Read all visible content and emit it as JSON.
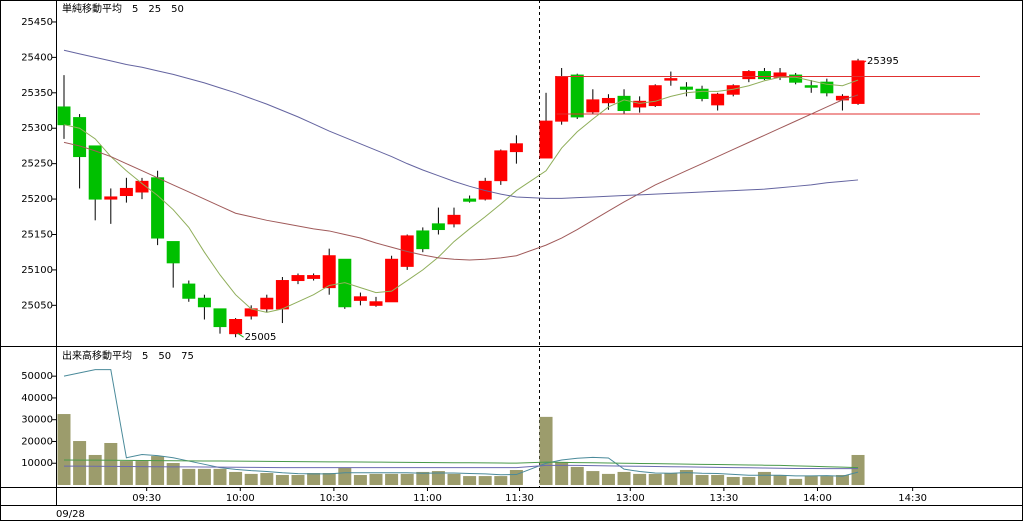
{
  "chart_data": [
    {
      "type": "candlestick",
      "title": "単純移動平均",
      "categories": [
        null,
        null,
        null,
        null,
        null,
        null,
        null,
        null,
        null,
        null,
        null,
        null,
        null,
        null,
        null,
        null,
        null,
        null,
        null,
        null,
        null,
        null,
        null,
        null,
        null,
        null,
        null,
        null,
        null,
        null,
        null,
        null,
        null,
        null,
        null,
        null,
        null,
        null,
        null,
        null,
        null,
        null,
        null,
        null,
        null,
        null,
        null,
        null,
        null,
        null,
        null
      ],
      "open": [
        25330,
        25315,
        25275,
        25200,
        25205,
        25210,
        25230,
        25140,
        25080,
        25060,
        25045,
        25010,
        25035,
        25045,
        25045,
        25085,
        25088,
        25075,
        25115,
        25057,
        25050,
        25055,
        25105,
        25155,
        25165,
        25165,
        25200,
        25200,
        25226,
        25267,
        25258,
        25310,
        25375,
        25323,
        25336,
        25345,
        25330,
        25332,
        25368,
        25358,
        25355,
        25333,
        25348,
        25370,
        25380,
        25372,
        25375,
        25360,
        25365,
        25340,
        25335
      ],
      "high": [
        25375,
        25320,
        25275,
        25215,
        25230,
        25230,
        25240,
        25140,
        25085,
        25065,
        25045,
        25032,
        25050,
        25065,
        25090,
        25095,
        25095,
        25130,
        25115,
        25068,
        25062,
        25120,
        25150,
        25160,
        25188,
        25188,
        25205,
        25230,
        25270,
        25290,
        25350,
        25385,
        25377,
        25355,
        25348,
        25355,
        25345,
        25362,
        25380,
        25365,
        25360,
        25350,
        25362,
        25382,
        25385,
        25385,
        25378,
        25368,
        25370,
        25348,
        25398
      ],
      "low": [
        25285,
        25215,
        25170,
        25165,
        25195,
        25200,
        25135,
        25075,
        25055,
        25030,
        25010,
        25005,
        25030,
        25040,
        25025,
        25080,
        25085,
        25065,
        25045,
        25050,
        25048,
        25055,
        25100,
        25125,
        25150,
        25160,
        25195,
        25198,
        25220,
        25250,
        25258,
        25305,
        25313,
        25320,
        25326,
        25320,
        25322,
        25330,
        25360,
        25345,
        25338,
        25325,
        25345,
        25365,
        25368,
        25368,
        25362,
        25350,
        25345,
        25325,
        25333
      ],
      "close": [
        25305,
        25260,
        25200,
        25203,
        25215,
        25225,
        25145,
        25110,
        25060,
        25048,
        25020,
        25030,
        25045,
        25060,
        25085,
        25092,
        25092,
        25120,
        25048,
        25062,
        25055,
        25115,
        25148,
        25130,
        25157,
        25177,
        25197,
        25225,
        25268,
        25278,
        25310,
        25373,
        25316,
        25340,
        25342,
        25325,
        25338,
        25360,
        25370,
        25355,
        25342,
        25348,
        25360,
        25380,
        25370,
        25378,
        25365,
        25358,
        25350,
        25345,
        25395
      ],
      "up_color": "#ff0000",
      "down_color": "#00c000",
      "series": [
        {
          "name": "5",
          "color": "#8fae5a",
          "values": [
            25305,
            25300,
            25285,
            25260,
            25240,
            25222,
            25205,
            25185,
            25160,
            25125,
            25093,
            25065,
            25045,
            25040,
            25045,
            25055,
            25065,
            25078,
            25082,
            25075,
            25068,
            25070,
            25085,
            25100,
            25118,
            25140,
            25158,
            25175,
            25193,
            25212,
            25240,
            25272,
            25295,
            25313,
            25330,
            25340,
            25335,
            25338,
            25345,
            25350,
            25352,
            25352,
            25355,
            25360,
            25367,
            25372,
            25372,
            25367,
            25362,
            25360,
            25368
          ]
        },
        {
          "name": "25",
          "color": "#a05a5a",
          "values": [
            25280,
            25275,
            25268,
            25260,
            25250,
            25240,
            25230,
            25220,
            25210,
            25200,
            25190,
            25180,
            25175,
            25170,
            25166,
            25162,
            25158,
            25155,
            25150,
            25145,
            25138,
            25132,
            25126,
            25121,
            25117,
            25115,
            25114,
            25115,
            25117,
            25120,
            25135,
            25145,
            25157,
            25170,
            25183,
            25196,
            25208,
            25220,
            25230,
            25240,
            25250,
            25260,
            25270,
            25280,
            25290,
            25300,
            25310,
            25320,
            25330,
            25340,
            25347
          ]
        },
        {
          "name": "50",
          "color": "#6464a0",
          "values": [
            25410,
            25405,
            25400,
            25395,
            25390,
            25386,
            25381,
            25376,
            25370,
            25364,
            25357,
            25350,
            25342,
            25334,
            25325,
            25316,
            25306,
            25296,
            25287,
            25278,
            25269,
            25260,
            25250,
            25241,
            25233,
            25225,
            25218,
            25212,
            25207,
            25203,
            25201,
            25201,
            25202,
            25203,
            25204,
            25205,
            25206,
            25207,
            25208,
            25209,
            25210,
            25211,
            25212,
            25213,
            25214,
            25216,
            25218,
            25220,
            25223,
            25225,
            25227
          ]
        }
      ],
      "hlines": [
        25373,
        25320
      ],
      "hline_color": "#e03030",
      "annotations": [
        {
          "value": 25395,
          "index": 50,
          "color": "#ff0000"
        },
        {
          "value": 25005,
          "index": 11,
          "color": "#22aa22"
        }
      ],
      "ylim": [
        24994,
        25481
      ],
      "yticks": [
        25050,
        25100,
        25150,
        25200,
        25250,
        25300,
        25350,
        25400,
        25450
      ]
    },
    {
      "type": "bar",
      "title": "出来高移動平均",
      "color": "#9c9c6c",
      "values": [
        32600,
        20200,
        13800,
        19300,
        11000,
        11000,
        13300,
        10100,
        7400,
        7400,
        7400,
        6000,
        5100,
        5500,
        4600,
        4600,
        5500,
        5500,
        7800,
        4600,
        5100,
        5100,
        5100,
        6000,
        6400,
        5100,
        4100,
        4100,
        4100,
        6900,
        31300,
        10600,
        8300,
        6400,
        5100,
        6000,
        5100,
        5100,
        5500,
        6900,
        4600,
        4600,
        3700,
        3700,
        6000,
        4600,
        2800,
        4100,
        4100,
        4600,
        13800
      ],
      "series": [
        {
          "name": "5",
          "color": "#4a8a9a",
          "values": [
            50000,
            51500,
            53000,
            53000,
            12500,
            14000,
            13500,
            12500,
            11000,
            9500,
            8000,
            7200,
            6600,
            6200,
            5600,
            5200,
            5100,
            5100,
            5600,
            5600,
            5600,
            5600,
            5600,
            5400,
            5500,
            5500,
            5300,
            5100,
            4700,
            4800,
            10000,
            11500,
            12300,
            12700,
            12400,
            7300,
            6200,
            5500,
            5400,
            5700,
            5400,
            5300,
            4900,
            4500,
            4500,
            4500,
            4200,
            4200,
            4300,
            4000,
            5900
          ]
        },
        {
          "name": "50",
          "color": "#4a9a4a",
          "values": [
            11500,
            11450,
            11400,
            11350,
            11300,
            11250,
            11200,
            11150,
            11100,
            11050,
            11000,
            10950,
            10900,
            10850,
            10800,
            10750,
            10700,
            10650,
            10600,
            10550,
            10500,
            10450,
            10400,
            10350,
            10300,
            10250,
            10200,
            10150,
            10100,
            10050,
            10500,
            10400,
            10300,
            10200,
            10100,
            10000,
            9900,
            9800,
            9700,
            9600,
            9500,
            9400,
            9300,
            9200,
            9100,
            9000,
            8800,
            8600,
            8400,
            8200,
            8000
          ]
        },
        {
          "name": "75",
          "color": "#6a6ab0",
          "values": [
            8700,
            8650,
            8600,
            8550,
            8500,
            8450,
            8400,
            8350,
            8300,
            8250,
            8200,
            8150,
            8100,
            8050,
            8000,
            8000,
            8000,
            8000,
            8000,
            8000,
            8000,
            8000,
            8000,
            8000,
            8000,
            8000,
            8000,
            8000,
            8000,
            8000,
            9000,
            9000,
            9000,
            8900,
            8800,
            8700,
            8600,
            8500,
            8400,
            8300,
            8200,
            8100,
            8000,
            7900,
            7800,
            7700,
            7600,
            7600,
            7500,
            7500,
            7500
          ]
        }
      ],
      "ylim": [
        0,
        63400
      ],
      "yticks": [
        10000,
        20000,
        30000,
        40000,
        50000
      ],
      "xlim": [
        -3.5,
        60.4
      ],
      "xticks": [
        {
          "value": 5.3,
          "label": "09:30"
        },
        {
          "value": 11.3,
          "label": "10:00"
        },
        {
          "value": 17.3,
          "label": "10:30"
        },
        {
          "value": 23.3,
          "label": "11:00"
        },
        {
          "value": 29.2,
          "label": "11:30"
        },
        {
          "value": 35.4,
          "label": "13:00"
        },
        {
          "value": 41.4,
          "label": "13:30"
        },
        {
          "value": 47.4,
          "label": "14:00"
        },
        {
          "value": 53.5,
          "label": "14:30"
        }
      ],
      "date": "09/28"
    }
  ]
}
